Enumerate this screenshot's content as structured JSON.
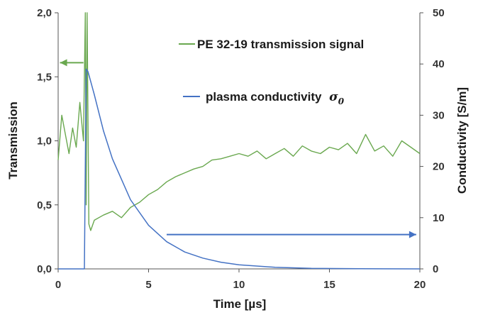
{
  "chart_data": {
    "type": "line",
    "xlabel": "Time [µs]",
    "ylabel": "Transmission",
    "y2label": "Conductivity [S/m]",
    "xlim": [
      0,
      20
    ],
    "ylim": [
      0,
      2
    ],
    "y2lim": [
      0,
      50
    ],
    "x_ticks": [
      0,
      5,
      10,
      15,
      20
    ],
    "x_tick_labels": [
      "0",
      "5",
      "10",
      "15",
      "20"
    ],
    "y_ticks": [
      0,
      0.5,
      1,
      1.5,
      2
    ],
    "y_tick_labels": [
      "0,0",
      "0,5",
      "1,0",
      "1,5",
      "2,0"
    ],
    "y2_ticks": [
      0,
      10,
      20,
      30,
      40,
      50
    ],
    "y2_tick_labels": [
      "0",
      "10",
      "20",
      "30",
      "40",
      "50"
    ],
    "grid": false,
    "legend_position": "top-center",
    "series": [
      {
        "name": "PE 32-19 transmission signal",
        "axis": "left",
        "color": "#6aa84f",
        "x": [
          0,
          0.2,
          0.4,
          0.6,
          0.8,
          1.0,
          1.2,
          1.4,
          1.5,
          1.55,
          1.6,
          1.7,
          1.8,
          2.0,
          2.5,
          3.0,
          3.5,
          4.0,
          4.5,
          5.0,
          5.5,
          6.0,
          6.5,
          7.0,
          7.5,
          8.0,
          8.5,
          9.0,
          9.5,
          10.0,
          10.5,
          11.0,
          11.5,
          12.0,
          12.5,
          13.0,
          13.5,
          14.0,
          14.5,
          15.0,
          15.5,
          16.0,
          16.5,
          17.0,
          17.5,
          18.0,
          18.5,
          19.0,
          19.5,
          20.0
        ],
        "y": [
          0.85,
          1.2,
          1.05,
          0.9,
          1.1,
          0.95,
          1.3,
          1.0,
          2.0,
          0.5,
          2.0,
          0.35,
          0.3,
          0.38,
          0.42,
          0.45,
          0.4,
          0.48,
          0.52,
          0.58,
          0.62,
          0.68,
          0.72,
          0.75,
          0.78,
          0.8,
          0.85,
          0.86,
          0.88,
          0.9,
          0.88,
          0.92,
          0.86,
          0.9,
          0.94,
          0.88,
          0.96,
          0.92,
          0.9,
          0.95,
          0.93,
          0.98,
          0.9,
          1.05,
          0.92,
          0.96,
          0.88,
          1.0,
          0.95,
          0.9
        ]
      },
      {
        "name": "plasma conductivity σ₀",
        "axis": "right",
        "color": "#4472c4",
        "x": [
          0,
          1.45,
          1.55,
          1.65,
          2.0,
          2.5,
          3.0,
          4.0,
          5.0,
          6.0,
          7.0,
          8.0,
          9.0,
          10.0,
          12.0,
          14.0,
          16.0,
          18.0,
          20.0
        ],
        "y": [
          0,
          0,
          39,
          38.5,
          34,
          27,
          21.5,
          13.5,
          8.5,
          5.3,
          3.3,
          2.1,
          1.3,
          0.8,
          0.3,
          0.1,
          0.05,
          0.02,
          0
        ]
      }
    ],
    "annotations": [
      {
        "type": "arrow",
        "direction": "left",
        "color": "#6aa84f",
        "x_from": 1.4,
        "x_to": 0.1,
        "y": 1.61,
        "axis": "left"
      },
      {
        "type": "arrow",
        "direction": "right",
        "color": "#4472c4",
        "x_from": 6.0,
        "x_to": 19.8,
        "y": 6.7,
        "axis": "right"
      }
    ],
    "legend_labels": {
      "transmission": "PE 32-19 transmission signal",
      "conductivity_text": "plasma conductivity",
      "conductivity_symbol": "σ",
      "conductivity_subscript": "0"
    }
  }
}
